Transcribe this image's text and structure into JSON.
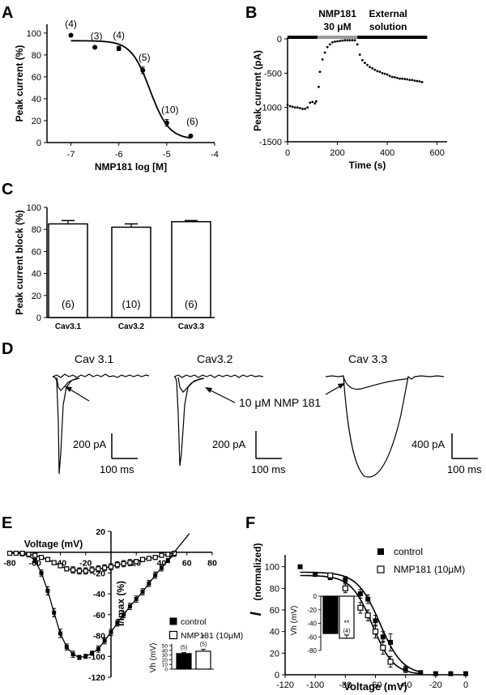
{
  "panel_labels": {
    "A": "A",
    "B": "B",
    "C": "C",
    "D": "D",
    "E": "E",
    "F": "F"
  },
  "chart_data": [
    {
      "id": "A",
      "type": "scatter",
      "xlabel": "NMP181 log [M]",
      "ylabel": "Peak current (%)",
      "xlim": [
        -7.5,
        -4
      ],
      "ylim": [
        0,
        108
      ],
      "xticks": [
        -7,
        -6,
        -5,
        -4
      ],
      "yticks": [
        0,
        20,
        40,
        60,
        80,
        100
      ],
      "points": [
        {
          "x": -7.0,
          "y": 98,
          "err": 0,
          "label": "(4)"
        },
        {
          "x": -6.5,
          "y": 87,
          "err": 0,
          "label": "(3)"
        },
        {
          "x": -6.0,
          "y": 86,
          "err": 2,
          "label": "(4)"
        },
        {
          "x": -5.5,
          "y": 66,
          "err": 3,
          "label": "(5)"
        },
        {
          "x": -5.0,
          "y": 18,
          "err": 3,
          "label": "(10)"
        },
        {
          "x": -4.5,
          "y": 6,
          "err": 0,
          "label": "(6)"
        }
      ],
      "fit": {
        "top": 93,
        "bottom": 3,
        "logIC50": -5.35,
        "hill": 2.2
      }
    },
    {
      "id": "B",
      "type": "scatter",
      "xlabel": "Time (s)",
      "ylabel": "Peak current (pA)",
      "xlim": [
        0,
        640
      ],
      "ylim": [
        -1500,
        80
      ],
      "xticks": [
        0,
        200,
        400,
        600
      ],
      "yticks": [
        -1500,
        -1000,
        -500,
        0
      ],
      "bars": [
        {
          "label": "",
          "x0": 0,
          "x1": 120,
          "color": "#000000"
        },
        {
          "label": "NMP181\n30 μM",
          "x0": 120,
          "x1": 280,
          "color": "#999999"
        },
        {
          "label": "External\nsolution",
          "x0": 280,
          "x1": 560,
          "color": "#000000"
        }
      ],
      "x": [
        0,
        10,
        20,
        30,
        40,
        50,
        60,
        70,
        80,
        90,
        100,
        110,
        115,
        125,
        130,
        140,
        150,
        160,
        170,
        180,
        190,
        200,
        210,
        220,
        230,
        240,
        250,
        260,
        270,
        280,
        290,
        300,
        310,
        320,
        330,
        340,
        350,
        360,
        370,
        380,
        390,
        400,
        410,
        420,
        430,
        440,
        450,
        460,
        470,
        480,
        490,
        500,
        510,
        520,
        530,
        540
      ],
      "y": [
        -960,
        -980,
        -990,
        -1000,
        -1000,
        -1010,
        -1020,
        -1020,
        -1000,
        -930,
        -920,
        -940,
        -910,
        -700,
        -480,
        -300,
        -200,
        -120,
        -80,
        -50,
        -40,
        -35,
        -30,
        -25,
        -20,
        -20,
        -20,
        -20,
        -20,
        -80,
        -230,
        -310,
        -350,
        -380,
        -410,
        -430,
        -450,
        -470,
        -480,
        -500,
        -510,
        -520,
        -540,
        -555,
        -560,
        -570,
        -580,
        -580,
        -585,
        -590,
        -600,
        -600,
        -610,
        -615,
        -620,
        -630
      ]
    },
    {
      "id": "C",
      "type": "bar",
      "ylabel": "Peak current block (%)",
      "categories": [
        "Cav3.1",
        "Cav3.2",
        "Cav3.3"
      ],
      "values": [
        85,
        82,
        87
      ],
      "errors": [
        3,
        3,
        1
      ],
      "n_labels": [
        "(6)",
        "(10)",
        "(6)"
      ],
      "ylim": [
        0,
        100
      ],
      "yticks": [
        0,
        20,
        40,
        60,
        80,
        100
      ]
    },
    {
      "id": "D",
      "type": "line",
      "traces": [
        {
          "title": "Cav 3.1",
          "scale_y": "200 pA",
          "scale_x": "100 ms"
        },
        {
          "title": "Cav3.2",
          "scale_y": "200 pA",
          "scale_x": "100 ms"
        },
        {
          "title": "Cav 3.3",
          "scale_y": "400 pA",
          "scale_x": "100 ms"
        }
      ],
      "annotation": "10 μM NMP 181"
    },
    {
      "id": "E",
      "type": "line",
      "xlabel": "Voltage (mV)",
      "ylabel": "I/Imax (%)",
      "xlim": [
        -80,
        80
      ],
      "ylim": [
        -120,
        20
      ],
      "xticks": [
        -80,
        -60,
        -40,
        -20,
        20,
        40,
        60,
        80
      ],
      "yticks": [
        -120,
        -100,
        -80,
        -60,
        -40,
        -20,
        20
      ],
      "series": [
        {
          "name": "control",
          "marker": "filled",
          "x": [
            -80,
            -75,
            -70,
            -65,
            -60,
            -55,
            -50,
            -45,
            -40,
            -35,
            -30,
            -25,
            -20,
            -15,
            -10,
            -5,
            0,
            5,
            10,
            15,
            20,
            25,
            30,
            35,
            40,
            45,
            50
          ],
          "y": [
            -1,
            -1,
            -2,
            -3,
            -8,
            -20,
            -37,
            -58,
            -78,
            -91,
            -98,
            -101,
            -100,
            -97,
            -93,
            -85,
            -77,
            -68,
            -60,
            -52,
            -45,
            -38,
            -30,
            -22,
            -15,
            -8,
            -2
          ],
          "err": [
            0,
            0,
            1,
            1,
            2,
            3,
            4,
            4,
            4,
            3,
            3,
            2,
            2,
            2,
            3,
            3,
            3,
            3,
            3,
            3,
            3,
            3,
            3,
            3,
            3,
            2,
            2
          ]
        },
        {
          "name": "NMP181 (10μM)",
          "marker": "open",
          "x": [
            -80,
            -75,
            -70,
            -65,
            -60,
            -55,
            -50,
            -45,
            -40,
            -35,
            -30,
            -25,
            -20,
            -15,
            -10,
            -5,
            0,
            5,
            10,
            15,
            20,
            25,
            30,
            35,
            40,
            45,
            50
          ],
          "y": [
            -1,
            -1,
            -1,
            -2,
            -3,
            -5,
            -7,
            -10,
            -13,
            -16,
            -17,
            -18,
            -18,
            -17,
            -16,
            -15,
            -14,
            -12,
            -11,
            -10,
            -9,
            -7,
            -6,
            -5,
            -3,
            -2,
            -1
          ],
          "err": [
            0,
            0,
            0,
            1,
            1,
            1,
            2,
            2,
            2,
            2,
            3,
            3,
            3,
            3,
            3,
            3,
            3,
            3,
            3,
            3,
            2,
            2,
            2,
            2,
            2,
            2,
            1
          ]
        }
      ],
      "inset": {
        "ylabel": "Vh (mV)",
        "ylim": [
          0,
          50
        ],
        "yticks": [
          0,
          10,
          20,
          30,
          40,
          50
        ],
        "values": [
          33,
          38
        ],
        "errors": [
          2,
          4
        ],
        "n_labels": [
          "(5)",
          "(5)"
        ],
        "sig": "*"
      }
    },
    {
      "id": "F",
      "type": "line",
      "xlabel": "Voltage (mV)",
      "ylabel_main": "I",
      "ylabel_sub": "(normalized)",
      "xlim": [
        -120,
        0
      ],
      "ylim": [
        0,
        105
      ],
      "xticks": [
        -120,
        -100,
        -80,
        -60,
        -40,
        -20,
        0
      ],
      "yticks": [
        0,
        20,
        40,
        60,
        80,
        100
      ],
      "series": [
        {
          "name": "control",
          "marker": "filled",
          "x": [
            -110,
            -100,
            -90,
            -80,
            -70,
            -65,
            -60,
            -55,
            -50,
            -40,
            -30,
            -20,
            -10,
            0
          ],
          "y": [
            100,
            93,
            90,
            88,
            75,
            70,
            50,
            35,
            30,
            5,
            2,
            1,
            1,
            1
          ],
          "err": [
            0,
            2,
            2,
            3,
            4,
            4,
            5,
            5,
            8,
            3,
            1,
            0,
            0,
            0
          ],
          "fit": {
            "top": 95,
            "v50": -57,
            "k": 7.5
          }
        },
        {
          "name": "NMP181 (10μM)",
          "marker": "open",
          "x": [
            -90,
            -80,
            -70,
            -65,
            -60,
            -55,
            -50
          ],
          "y": [
            92,
            80,
            62,
            55,
            40,
            25,
            12
          ],
          "err": [
            2,
            4,
            5,
            5,
            6,
            6,
            5
          ],
          "fit": {
            "top": 92,
            "v50": -62,
            "k": 7
          }
        }
      ],
      "inset": {
        "ylabel": "Vh (mV)",
        "ylim": [
          -80,
          0
        ],
        "yticks": [
          0,
          -20,
          -40,
          -60,
          -80
        ],
        "values": [
          -55,
          -62
        ],
        "errors": [
          2,
          3
        ],
        "n_labels": [
          "(4)",
          "(4)"
        ],
        "sig": "**"
      }
    }
  ]
}
